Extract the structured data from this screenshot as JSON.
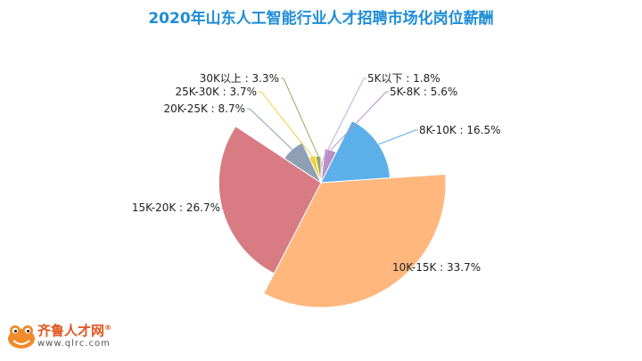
{
  "chart_data": {
    "type": "pie",
    "variant": "rose",
    "title": "2020年山东人工智能行业人才招聘市场化岗位薪酬",
    "slices": [
      {
        "label": "5K以下",
        "value": 1.8,
        "display": "5K以下 : 1.8%",
        "color": "#c9a8d8"
      },
      {
        "label": "5K-8K",
        "value": 5.6,
        "display": "5K-8K : 5.6%",
        "color": "#b98fc9"
      },
      {
        "label": "8K-10K",
        "value": 16.5,
        "display": "8K-10K : 16.5%",
        "color": "#5bb0ea"
      },
      {
        "label": "10K-15K",
        "value": 33.7,
        "display": "10K-15K : 33.7%",
        "color": "#ffb77e"
      },
      {
        "label": "15K-20K",
        "value": 26.7,
        "display": "15K-20K : 26.7%",
        "color": "#d87b82"
      },
      {
        "label": "20K-25K",
        "value": 8.7,
        "display": "20K-25K : 8.7%",
        "color": "#8da0b6"
      },
      {
        "label": "25K-30K",
        "value": 3.7,
        "display": "25K-30K : 3.7%",
        "color": "#f2cf3c"
      },
      {
        "label": "30K以上",
        "value": 3.3,
        "display": "30K以上 : 3.3%",
        "color": "#9aa85a"
      }
    ],
    "legend": "none"
  },
  "logo": {
    "text": "齐鲁人才网",
    "reg": "®",
    "url": "www.qlrc.com"
  }
}
